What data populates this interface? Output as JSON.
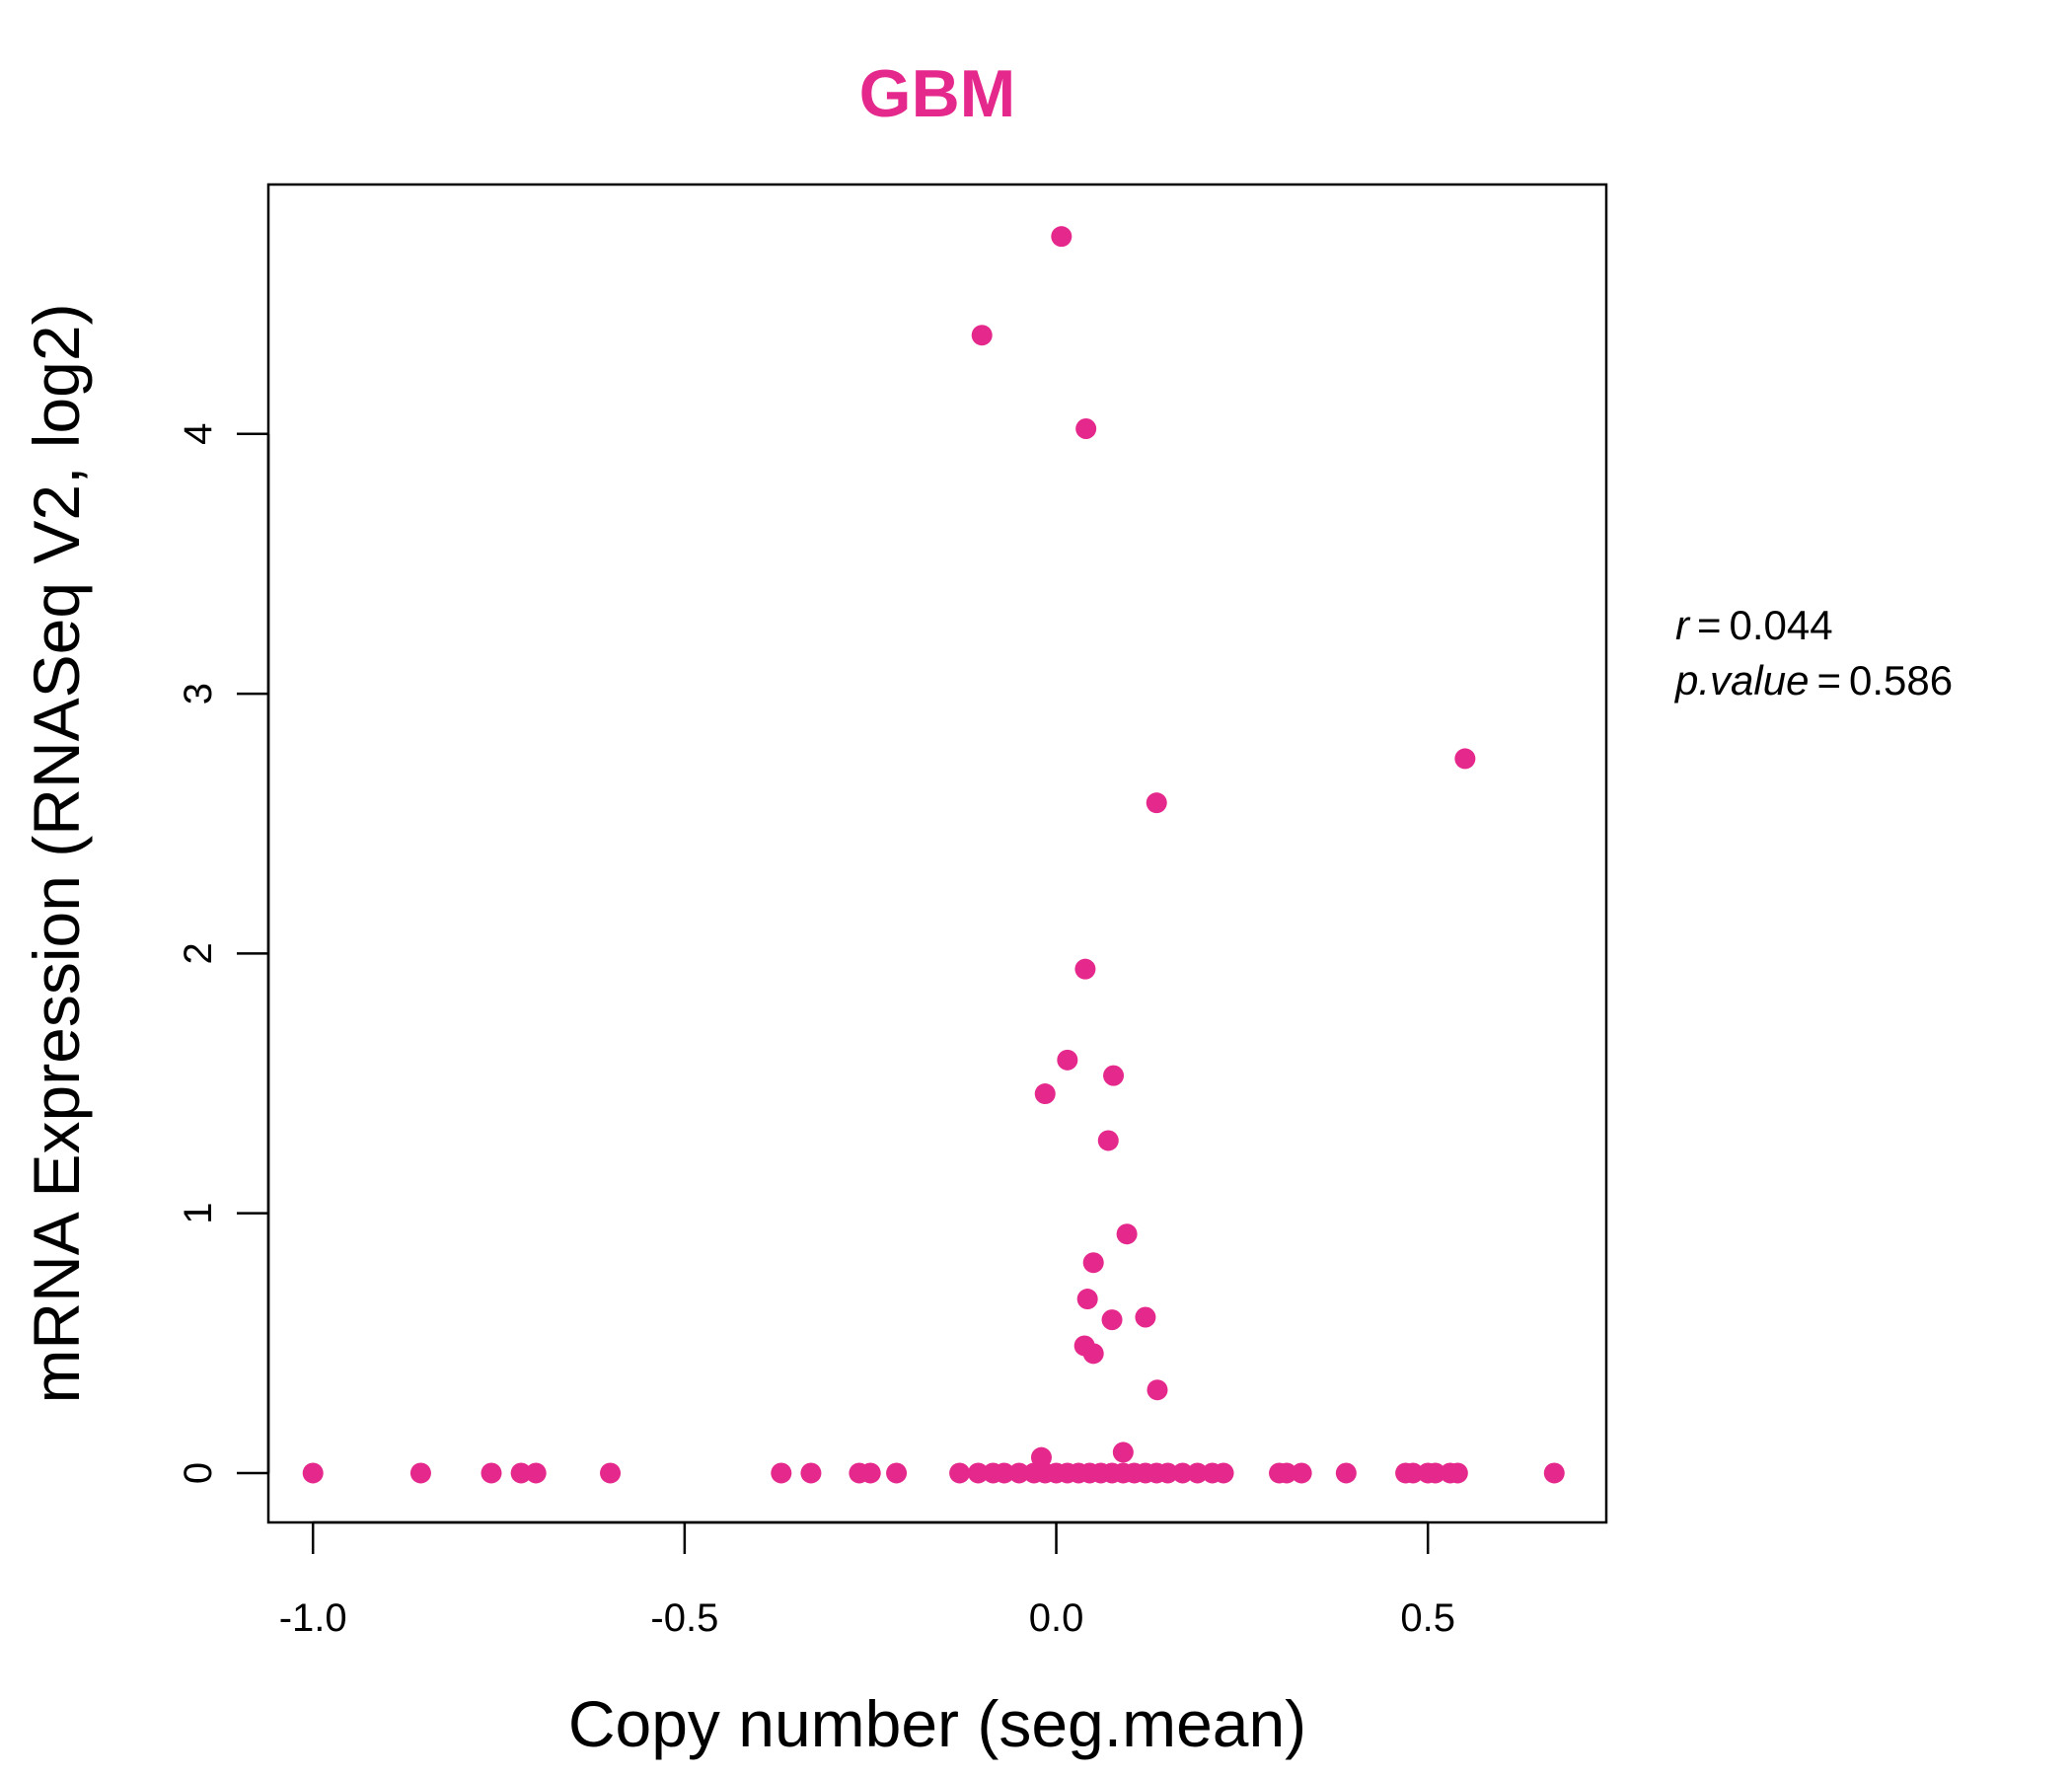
{
  "chart_data": {
    "type": "scatter",
    "title": "GBM",
    "title_color": "#e5288c",
    "point_color": "#e5288c",
    "xlabel": "Copy number (seg.mean)",
    "ylabel": "mRNA Expression (RNASeq V2, log2)",
    "xlim": [
      -1.06,
      0.74
    ],
    "ylim": [
      -0.19,
      4.96
    ],
    "xticks": [
      -1.0,
      -0.5,
      0.0,
      0.5
    ],
    "xtick_labels": [
      "-1.0",
      "-0.5",
      "0.0",
      "0.5"
    ],
    "yticks": [
      0,
      1,
      2,
      3,
      4
    ],
    "ytick_labels": [
      "0",
      "1",
      "2",
      "3",
      "4"
    ],
    "grid": false,
    "legend": "none",
    "stats": {
      "r_label": "r",
      "r_value": "0.044",
      "p_label": "p.value",
      "p_value": "0.586"
    },
    "series": [
      {
        "x": [
          0.007,
          -0.1,
          0.04,
          0.55,
          0.135,
          0.039,
          0.015,
          -0.015,
          0.077,
          0.07,
          0.095,
          0.05,
          0.042,
          0.12,
          0.075,
          0.038,
          0.05,
          0.136,
          -0.02,
          0.09,
          -1.0,
          -0.855,
          -0.76,
          -0.72,
          -0.7,
          -0.6,
          -0.37,
          -0.33,
          -0.265,
          -0.25,
          -0.215,
          -0.13,
          -0.105,
          -0.085,
          -0.07,
          -0.05,
          -0.03,
          -0.015,
          0.0,
          0.015,
          0.03,
          0.045,
          0.06,
          0.075,
          0.09,
          0.105,
          0.12,
          0.135,
          0.15,
          0.17,
          0.19,
          0.21,
          0.225,
          0.3,
          0.31,
          0.33,
          0.39,
          0.47,
          0.48,
          0.5,
          0.51,
          0.53,
          0.54,
          0.67
        ],
        "y": [
          4.76,
          4.38,
          4.02,
          2.75,
          2.58,
          1.94,
          1.59,
          1.46,
          1.53,
          1.28,
          0.92,
          0.81,
          0.67,
          0.6,
          0.59,
          0.49,
          0.46,
          0.32,
          0.06,
          0.08,
          0,
          0,
          0,
          0,
          0,
          0,
          0,
          0,
          0,
          0,
          0,
          0,
          0,
          0,
          0,
          0,
          0,
          0,
          0,
          0,
          0,
          0,
          0,
          0,
          0,
          0,
          0,
          0,
          0,
          0,
          0,
          0,
          0,
          0,
          0,
          0,
          0,
          0,
          0,
          0,
          0,
          0,
          0,
          0
        ]
      }
    ]
  }
}
